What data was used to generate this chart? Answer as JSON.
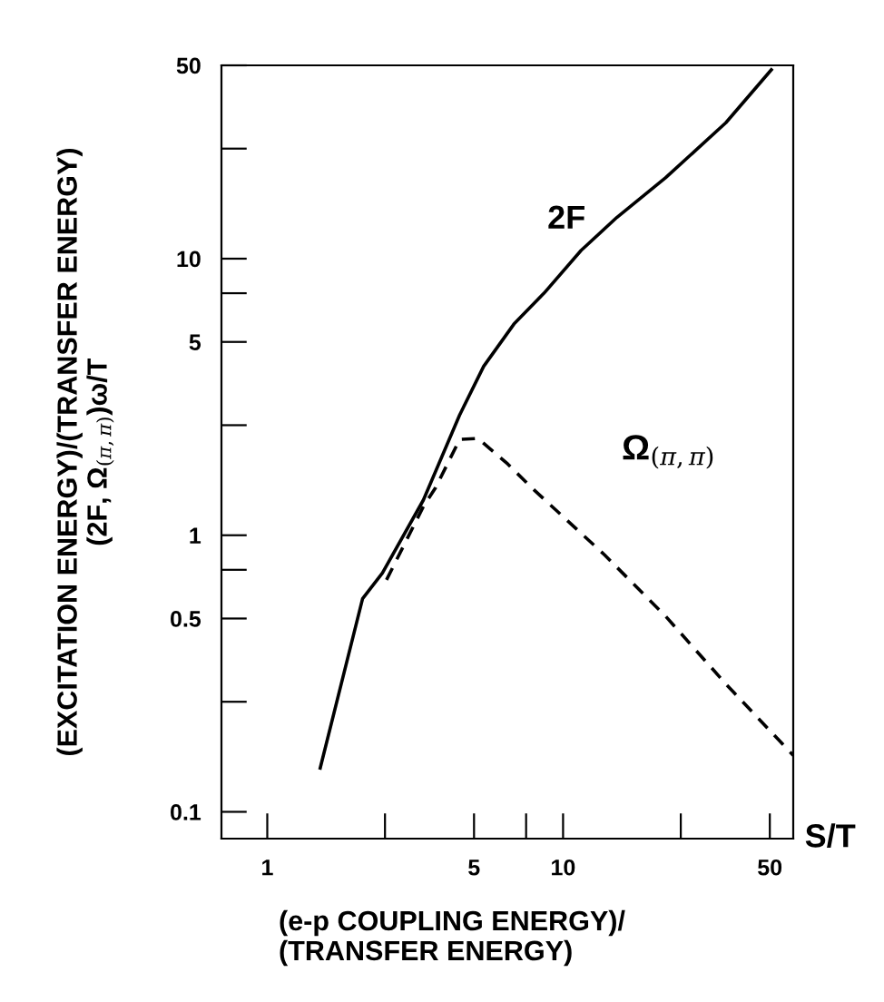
{
  "chart_data": {
    "type": "line",
    "xlabel": "(e-p COUPLING ENERGY)/\n(TRANSFER ENERGY)",
    "ylabel": "(EXCITATION ENERGY)/(TRANSFER ENERGY)\n(2F, Ω$_{(π,π)}$)ω/T",
    "annotations": [
      "S/T"
    ],
    "log": "xy",
    "xlim": [
      0.7,
      60
    ],
    "ylim": [
      0.08,
      50
    ],
    "xticks": [
      1,
      {
        "value": 2.5,
        "label": null
      },
      5,
      {
        "value": 7.5,
        "label": null
      },
      10,
      {
        "value": 25,
        "label": null
      },
      50
    ],
    "yticks": [
      0.1,
      {
        "value": 0.25,
        "label": null
      },
      0.5,
      {
        "value": 0.75,
        "label": null
      },
      1,
      {
        "value": 2.5,
        "label": null
      },
      5,
      {
        "value": 7.5,
        "label": null
      },
      10,
      {
        "value": 25,
        "label": null
      },
      50
    ],
    "grid": false,
    "legend": false,
    "series": [
      {
        "name": "2F",
        "color": "#000000",
        "line_style": "solid",
        "x": [
          1.51,
          2.1,
          2.45,
          3.37,
          4.47,
          5.39,
          6.82,
          8.62,
          11.5,
          15.2,
          22.2,
          35.5,
          50.6
        ],
        "values": [
          0.144,
          0.59,
          0.73,
          1.34,
          2.72,
          4.08,
          5.8,
          7.5,
          10.7,
          14.1,
          19.6,
          31,
          48.2
        ]
      },
      {
        "name": "Ω$_{(π,π)}$",
        "color": "#000000",
        "line_style": "dashed",
        "x": [
          2.53,
          3.37,
          3.7,
          4.47,
          5.15,
          6.5,
          7.86,
          13.8,
          22.2,
          35.5,
          60
        ],
        "values": [
          0.69,
          1.27,
          1.48,
          2.22,
          2.24,
          1.81,
          1.48,
          0.85,
          0.51,
          0.29,
          0.16
        ]
      }
    ]
  }
}
